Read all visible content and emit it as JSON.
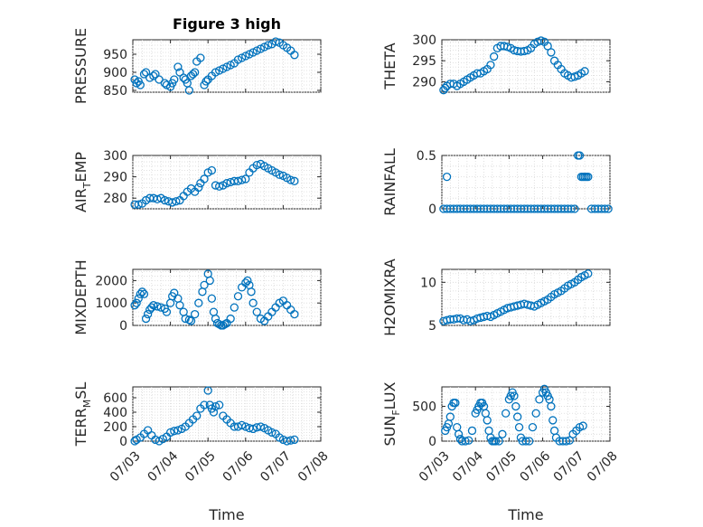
{
  "figure_title": "Figure 3 high",
  "chart_data": [
    {
      "type": "scatter",
      "id": "pressure",
      "title": "Figure 3 high",
      "ylabel": "PRESSURE",
      "ylabel_sub": "",
      "ylabel_tail": "",
      "ylim": [
        845,
        990
      ],
      "yticks": [
        850,
        900,
        950
      ],
      "xlim": [
        0,
        5
      ],
      "xlabel": "",
      "x": [
        0.05,
        0.1,
        0.15,
        0.2,
        0.3,
        0.35,
        0.45,
        0.55,
        0.6,
        0.7,
        0.85,
        0.9,
        1.0,
        1.05,
        1.1,
        1.2,
        1.25,
        1.35,
        1.4,
        1.45,
        1.5,
        1.55,
        1.6,
        1.65,
        1.7,
        1.8,
        1.9,
        1.95,
        2.0,
        2.1,
        2.2,
        2.3,
        2.4,
        2.5,
        2.6,
        2.7,
        2.8,
        2.9,
        3.0,
        3.1,
        3.2,
        3.3,
        3.4,
        3.5,
        3.6,
        3.7,
        3.8,
        3.9,
        4.0,
        4.1,
        4.2,
        4.3
      ],
      "y": [
        880,
        870,
        875,
        865,
        895,
        900,
        885,
        890,
        895,
        880,
        870,
        865,
        860,
        870,
        880,
        915,
        900,
        885,
        880,
        870,
        850,
        890,
        895,
        900,
        930,
        940,
        865,
        875,
        880,
        890,
        900,
        905,
        910,
        915,
        920,
        925,
        935,
        940,
        945,
        950,
        955,
        960,
        965,
        970,
        975,
        978,
        985,
        982,
        975,
        968,
        960,
        948
      ]
    },
    {
      "type": "scatter",
      "id": "theta",
      "title": "",
      "ylabel": "THETA",
      "ylabel_sub": "",
      "ylabel_tail": "",
      "ylim": [
        287.5,
        300
      ],
      "yticks": [
        290,
        295,
        300
      ],
      "xlim": [
        0,
        5
      ],
      "xlabel": "",
      "x": [
        0.05,
        0.1,
        0.15,
        0.25,
        0.35,
        0.45,
        0.55,
        0.65,
        0.75,
        0.85,
        0.95,
        1.05,
        1.15,
        1.25,
        1.35,
        1.45,
        1.55,
        1.65,
        1.75,
        1.85,
        1.95,
        2.05,
        2.15,
        2.25,
        2.35,
        2.45,
        2.55,
        2.65,
        2.75,
        2.85,
        2.95,
        3.05,
        3.15,
        3.25,
        3.35,
        3.45,
        3.55,
        3.65,
        3.75,
        3.85,
        3.95,
        4.05,
        4.15,
        4.25
      ],
      "y": [
        288,
        288.5,
        289,
        289.5,
        289.5,
        289,
        289.5,
        290,
        290.5,
        291,
        291.5,
        292,
        292,
        292.5,
        293,
        294,
        296,
        298,
        298.5,
        298.5,
        298.3,
        298,
        297.5,
        297.3,
        297.2,
        297.3,
        297.5,
        298,
        299,
        299.5,
        299.8,
        299.5,
        298.5,
        297,
        295,
        294,
        293,
        292,
        291.5,
        291,
        291.2,
        291.5,
        292,
        292.5
      ]
    },
    {
      "type": "scatter",
      "id": "air_temp",
      "title": "",
      "ylabel": "AIR",
      "ylabel_sub": "T",
      "ylabel_tail": "EMP",
      "ylim": [
        275,
        300
      ],
      "yticks": [
        280,
        290,
        300
      ],
      "xlim": [
        0,
        5
      ],
      "xlabel": "",
      "x": [
        0.05,
        0.15,
        0.25,
        0.35,
        0.45,
        0.55,
        0.65,
        0.75,
        0.85,
        0.95,
        1.05,
        1.15,
        1.25,
        1.35,
        1.45,
        1.55,
        1.65,
        1.75,
        1.8,
        1.9,
        2.0,
        2.1,
        2.2,
        2.3,
        2.4,
        2.5,
        2.6,
        2.7,
        2.8,
        2.9,
        3.0,
        3.1,
        3.2,
        3.3,
        3.4,
        3.5,
        3.6,
        3.7,
        3.8,
        3.9,
        4.0,
        4.1,
        4.2,
        4.3
      ],
      "y": [
        277,
        277,
        277.5,
        279,
        280,
        280,
        279.5,
        280,
        279,
        278.5,
        278,
        278.5,
        279,
        281,
        283,
        284.5,
        283,
        285,
        287,
        289,
        292,
        293,
        286,
        285.5,
        286,
        287,
        287.5,
        288,
        288,
        288.5,
        289,
        292,
        294,
        295.5,
        296,
        295,
        294,
        293,
        292,
        291,
        290.5,
        289.5,
        288.5,
        288
      ]
    },
    {
      "type": "scatter",
      "id": "rainfall",
      "title": "",
      "ylabel": "RAINFALL",
      "ylabel_sub": "",
      "ylabel_tail": "",
      "ylim": [
        0,
        0.5
      ],
      "yticks": [
        0,
        0.5
      ],
      "xlim": [
        0,
        5
      ],
      "xlabel": "",
      "x": [
        0.05,
        0.15,
        0.25,
        0.35,
        0.45,
        0.55,
        0.65,
        0.75,
        0.85,
        0.95,
        1.05,
        1.15,
        1.25,
        1.35,
        1.45,
        1.55,
        1.65,
        1.75,
        1.85,
        1.95,
        2.05,
        2.15,
        2.25,
        2.35,
        2.45,
        2.55,
        2.65,
        2.75,
        2.85,
        2.95,
        3.05,
        3.15,
        3.25,
        3.35,
        3.45,
        3.55,
        3.65,
        3.75,
        3.85,
        3.95,
        4.05,
        4.1,
        4.15,
        4.2,
        4.25,
        4.3,
        4.35,
        4.45,
        4.55,
        4.65,
        4.75,
        4.85,
        4.95,
        0.15
      ],
      "y": [
        0,
        0,
        0,
        0,
        0,
        0,
        0,
        0,
        0,
        0,
        0,
        0,
        0,
        0,
        0,
        0,
        0,
        0,
        0,
        0,
        0,
        0,
        0,
        0,
        0,
        0,
        0,
        0,
        0,
        0,
        0,
        0,
        0,
        0,
        0,
        0,
        0,
        0,
        0,
        0,
        0.5,
        0.5,
        0.3,
        0.3,
        0.3,
        0.3,
        0.3,
        0,
        0,
        0,
        0,
        0,
        0,
        0.3
      ]
    },
    {
      "type": "scatter",
      "id": "mixdepth",
      "title": "",
      "ylabel": "MIXDEPTH",
      "ylabel_sub": "",
      "ylabel_tail": "",
      "ylim": [
        0,
        2500
      ],
      "yticks": [
        0,
        1000,
        2000
      ],
      "xlim": [
        0,
        5
      ],
      "xlabel": "",
      "x": [
        0.05,
        0.1,
        0.15,
        0.2,
        0.25,
        0.3,
        0.35,
        0.4,
        0.45,
        0.5,
        0.55,
        0.65,
        0.75,
        0.85,
        0.9,
        1.0,
        1.05,
        1.1,
        1.2,
        1.25,
        1.35,
        1.4,
        1.5,
        1.55,
        1.65,
        1.75,
        1.85,
        1.9,
        2.0,
        2.05,
        2.1,
        2.15,
        2.2,
        2.25,
        2.3,
        2.35,
        2.4,
        2.45,
        2.5,
        2.6,
        2.7,
        2.8,
        2.9,
        3.0,
        3.05,
        3.1,
        3.15,
        3.2,
        3.3,
        3.4,
        3.5,
        3.6,
        3.7,
        3.8,
        3.9,
        4.0,
        4.1,
        4.2,
        4.3
      ],
      "y": [
        900,
        1000,
        1200,
        1400,
        1500,
        1400,
        300,
        500,
        700,
        800,
        900,
        850,
        800,
        750,
        600,
        1000,
        1300,
        1450,
        1200,
        900,
        600,
        300,
        250,
        200,
        500,
        1000,
        1500,
        1800,
        2300,
        2000,
        1200,
        600,
        300,
        100,
        50,
        0,
        0,
        50,
        100,
        300,
        800,
        1300,
        1700,
        1900,
        2000,
        1800,
        1500,
        1000,
        600,
        300,
        200,
        400,
        600,
        800,
        1000,
        1100,
        900,
        700,
        500
      ]
    },
    {
      "type": "scatter",
      "id": "h2omixra",
      "title": "",
      "ylabel": "H2OMIXRA",
      "ylabel_sub": "",
      "ylabel_tail": "",
      "ylim": [
        5,
        11.5
      ],
      "yticks": [
        5,
        10
      ],
      "xlim": [
        0,
        5
      ],
      "xlabel": "",
      "x": [
        0.05,
        0.15,
        0.25,
        0.35,
        0.45,
        0.55,
        0.65,
        0.75,
        0.85,
        0.95,
        1.05,
        1.15,
        1.25,
        1.35,
        1.45,
        1.55,
        1.65,
        1.75,
        1.85,
        1.95,
        2.05,
        2.15,
        2.25,
        2.35,
        2.45,
        2.55,
        2.65,
        2.75,
        2.85,
        2.95,
        3.05,
        3.15,
        3.25,
        3.35,
        3.45,
        3.55,
        3.65,
        3.75,
        3.85,
        3.95,
        4.05,
        4.15,
        4.25,
        4.35
      ],
      "y": [
        5.5,
        5.6,
        5.7,
        5.7,
        5.8,
        5.8,
        5.6,
        5.7,
        5.5,
        5.6,
        5.8,
        5.9,
        6.0,
        6.1,
        6.0,
        6.2,
        6.4,
        6.6,
        6.8,
        7.0,
        7.1,
        7.2,
        7.3,
        7.4,
        7.5,
        7.4,
        7.3,
        7.2,
        7.4,
        7.6,
        7.8,
        8.0,
        8.3,
        8.6,
        8.8,
        9.0,
        9.3,
        9.6,
        9.8,
        10.0,
        10.3,
        10.6,
        10.8,
        11.0
      ]
    },
    {
      "type": "scatter",
      "id": "terr_msl",
      "title": "",
      "ylabel": "TERR",
      "ylabel_sub": "M",
      "ylabel_tail": "SL",
      "ylim": [
        0,
        750
      ],
      "yticks": [
        0,
        200,
        400,
        600
      ],
      "xlim": [
        0,
        5
      ],
      "xlabel": "Time",
      "xticks": [
        0,
        1,
        2,
        3,
        4,
        5
      ],
      "xticklabels": [
        "07/03",
        "07/04",
        "07/05",
        "07/06",
        "07/07",
        "07/08"
      ],
      "x": [
        0.05,
        0.1,
        0.2,
        0.3,
        0.4,
        0.5,
        0.6,
        0.7,
        0.8,
        0.9,
        1.0,
        1.1,
        1.2,
        1.3,
        1.4,
        1.5,
        1.6,
        1.7,
        1.8,
        1.9,
        2.0,
        2.05,
        2.1,
        2.15,
        2.2,
        2.3,
        2.4,
        2.5,
        2.6,
        2.7,
        2.8,
        2.9,
        3.0,
        3.1,
        3.2,
        3.3,
        3.4,
        3.5,
        3.6,
        3.7,
        3.8,
        3.9,
        4.0,
        4.1,
        4.2,
        4.3
      ],
      "y": [
        0,
        20,
        50,
        100,
        150,
        80,
        20,
        0,
        30,
        60,
        120,
        140,
        150,
        170,
        200,
        250,
        300,
        350,
        450,
        500,
        700,
        500,
        450,
        400,
        480,
        500,
        350,
        300,
        250,
        200,
        200,
        220,
        200,
        180,
        170,
        190,
        200,
        180,
        150,
        120,
        100,
        50,
        20,
        0,
        10,
        20
      ]
    },
    {
      "type": "scatter",
      "id": "sun_flux",
      "title": "",
      "ylabel": "SUN",
      "ylabel_sub": "F",
      "ylabel_tail": "LUX",
      "ylim": [
        0,
        780
      ],
      "yticks": [
        0,
        500
      ],
      "xlim": [
        0,
        5
      ],
      "xlabel": "Time",
      "xticks": [
        0,
        1,
        2,
        3,
        4,
        5
      ],
      "xticklabels": [
        "07/03",
        "07/04",
        "07/05",
        "07/06",
        "07/07",
        "07/08"
      ],
      "x": [
        0.1,
        0.15,
        0.2,
        0.25,
        0.3,
        0.35,
        0.4,
        0.45,
        0.5,
        0.55,
        0.6,
        0.7,
        0.8,
        0.9,
        1.0,
        1.05,
        1.1,
        1.15,
        1.2,
        1.25,
        1.3,
        1.35,
        1.4,
        1.45,
        1.5,
        1.55,
        1.6,
        1.7,
        1.8,
        1.9,
        2.0,
        2.05,
        2.1,
        2.15,
        2.2,
        2.25,
        2.3,
        2.35,
        2.4,
        2.5,
        2.6,
        2.7,
        2.8,
        2.9,
        3.0,
        3.05,
        3.1,
        3.15,
        3.2,
        3.25,
        3.3,
        3.35,
        3.4,
        3.5,
        3.6,
        3.7,
        3.8,
        3.9,
        4.0,
        4.1,
        4.2
      ],
      "y": [
        150,
        200,
        250,
        350,
        500,
        550,
        550,
        200,
        100,
        30,
        0,
        0,
        10,
        150,
        400,
        450,
        500,
        550,
        550,
        500,
        400,
        300,
        150,
        50,
        0,
        0,
        0,
        0,
        100,
        400,
        600,
        650,
        700,
        650,
        500,
        350,
        200,
        50,
        0,
        0,
        0,
        200,
        400,
        600,
        700,
        750,
        700,
        650,
        600,
        500,
        300,
        150,
        50,
        0,
        0,
        0,
        10,
        100,
        150,
        200,
        220
      ]
    }
  ]
}
